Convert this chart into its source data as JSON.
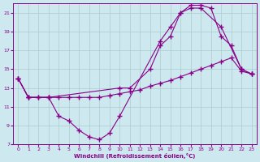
{
  "xlabel": "Windchill (Refroidissement éolien,°C)",
  "bg_color": "#cde8ee",
  "grid_color": "#aacccc",
  "line_color": "#880088",
  "xlim": [
    -0.5,
    23.5
  ],
  "ylim": [
    7,
    22
  ],
  "xticks": [
    0,
    1,
    2,
    3,
    4,
    5,
    6,
    7,
    8,
    9,
    10,
    11,
    12,
    13,
    14,
    15,
    16,
    17,
    18,
    19,
    20,
    21,
    22,
    23
  ],
  "yticks": [
    7,
    9,
    11,
    13,
    15,
    17,
    19,
    21
  ],
  "line1_x": [
    0,
    1,
    2,
    3,
    10,
    11,
    13,
    14,
    15,
    16,
    17,
    18,
    20,
    22,
    23
  ],
  "line1_y": [
    14,
    12,
    12,
    12,
    13,
    13,
    15,
    17.5,
    18.5,
    21,
    21.5,
    21.5,
    19.5,
    15,
    14.5
  ],
  "line2_x": [
    0,
    1,
    3,
    4,
    5,
    6,
    7,
    8,
    9,
    10,
    14,
    15,
    16,
    17,
    18,
    19,
    20,
    21,
    22,
    23
  ],
  "line2_y": [
    14,
    12,
    12,
    10,
    9.5,
    8.5,
    7.8,
    7.5,
    8.2,
    10,
    18,
    19.5,
    21,
    21.8,
    21.8,
    21.5,
    18.5,
    17.5,
    15,
    14.5
  ],
  "line3_x": [
    0,
    1,
    2,
    3,
    4,
    5,
    6,
    7,
    8,
    9,
    10,
    11,
    12,
    13,
    14,
    15,
    16,
    17,
    18,
    19,
    20,
    21,
    22,
    23
  ],
  "line3_y": [
    14,
    12,
    12,
    12,
    12,
    12,
    12,
    12,
    12,
    12.2,
    12.4,
    12.6,
    12.8,
    13.2,
    13.5,
    13.8,
    14.2,
    14.6,
    15.0,
    15.4,
    15.8,
    16.2,
    14.8,
    14.5
  ]
}
